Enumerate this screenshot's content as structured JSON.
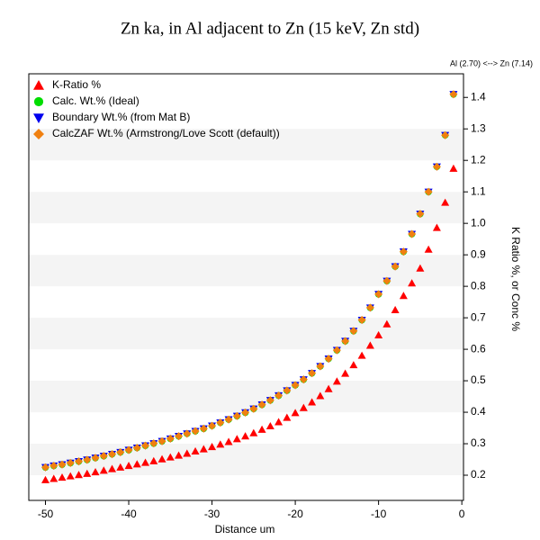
{
  "chart_data": {
    "type": "scatter",
    "title": "Zn ka, in Al adjacent to Zn (15 keV, Zn std)",
    "subtitle": "Al (2.70) <--> Zn (7.14)",
    "x_label": "Distance um",
    "y_label": "K Ratio %, or Conc %",
    "x": [
      -50,
      -49,
      -48,
      -47,
      -46,
      -45,
      -44,
      -43,
      -42,
      -41,
      -40,
      -39,
      -38,
      -37,
      -36,
      -35,
      -34,
      -33,
      -32,
      -31,
      -30,
      -29,
      -28,
      -27,
      -26,
      -25,
      -24,
      -23,
      -22,
      -21,
      -20,
      -19,
      -18,
      -17,
      -16,
      -15,
      -14,
      -13,
      -12,
      -11,
      -10,
      -9,
      -8,
      -7,
      -6,
      -5,
      -4,
      -3,
      -2,
      -1
    ],
    "series": [
      {
        "name": "K-Ratio %",
        "color": "#ff0000",
        "marker": "triangle-up",
        "values": [
          0.185,
          0.189,
          0.193,
          0.197,
          0.201,
          0.205,
          0.21,
          0.215,
          0.22,
          0.225,
          0.23,
          0.235,
          0.24,
          0.245,
          0.251,
          0.257,
          0.263,
          0.269,
          0.276,
          0.283,
          0.29,
          0.298,
          0.306,
          0.315,
          0.324,
          0.334,
          0.345,
          0.356,
          0.369,
          0.383,
          0.398,
          0.414,
          0.432,
          0.452,
          0.474,
          0.498,
          0.523,
          0.55,
          0.58,
          0.612,
          0.645,
          0.68,
          0.725,
          0.77,
          0.81,
          0.857,
          0.917,
          0.986,
          1.066,
          1.174
        ]
      },
      {
        "name": "Calc. Wt.% (Ideal)",
        "color": "#00dd00",
        "marker": "circle",
        "values": [
          0.225,
          0.23,
          0.234,
          0.239,
          0.244,
          0.249,
          0.255,
          0.261,
          0.267,
          0.273,
          0.28,
          0.287,
          0.294,
          0.301,
          0.308,
          0.316,
          0.324,
          0.332,
          0.34,
          0.348,
          0.357,
          0.367,
          0.377,
          0.388,
          0.399,
          0.411,
          0.424,
          0.438,
          0.453,
          0.469,
          0.486,
          0.504,
          0.524,
          0.546,
          0.57,
          0.597,
          0.626,
          0.658,
          0.693,
          0.732,
          0.775,
          0.817,
          0.863,
          0.91,
          0.966,
          1.03,
          1.1,
          1.18,
          1.28,
          1.41
        ]
      },
      {
        "name": "Boundary Wt.% (from Mat B)",
        "color": "#0000ee",
        "marker": "triangle-down",
        "values": [
          0.225,
          0.23,
          0.234,
          0.239,
          0.244,
          0.249,
          0.255,
          0.261,
          0.267,
          0.273,
          0.28,
          0.287,
          0.294,
          0.301,
          0.308,
          0.316,
          0.324,
          0.332,
          0.34,
          0.348,
          0.357,
          0.367,
          0.377,
          0.388,
          0.399,
          0.411,
          0.424,
          0.438,
          0.453,
          0.469,
          0.486,
          0.504,
          0.524,
          0.546,
          0.57,
          0.597,
          0.626,
          0.658,
          0.693,
          0.732,
          0.775,
          0.817,
          0.863,
          0.91,
          0.966,
          1.03,
          1.1,
          1.18,
          1.28,
          1.41
        ]
      },
      {
        "name": "CalcZAF Wt.% (Armstrong/Love Scott (default))",
        "color": "#f08010",
        "marker": "diamond",
        "values": [
          0.225,
          0.23,
          0.234,
          0.239,
          0.244,
          0.249,
          0.255,
          0.261,
          0.267,
          0.273,
          0.28,
          0.287,
          0.294,
          0.301,
          0.308,
          0.316,
          0.324,
          0.332,
          0.34,
          0.348,
          0.357,
          0.367,
          0.377,
          0.388,
          0.399,
          0.411,
          0.424,
          0.438,
          0.453,
          0.469,
          0.486,
          0.504,
          0.524,
          0.546,
          0.57,
          0.597,
          0.626,
          0.658,
          0.693,
          0.732,
          0.775,
          0.817,
          0.863,
          0.91,
          0.966,
          1.03,
          1.1,
          1.18,
          1.28,
          1.41
        ]
      }
    ],
    "xlim": [
      -52,
      0.2
    ],
    "xticks": [
      -50,
      -40,
      -30,
      -20,
      -10,
      0
    ],
    "ylim": [
      0.12,
      1.475
    ],
    "yticks": [
      0.2,
      0.3,
      0.4,
      0.5,
      0.6,
      0.7,
      0.8,
      0.9,
      {
        "value": 1.0,
        "label": "1.0"
      },
      1.1,
      1.2,
      1.3,
      1.4
    ],
    "grid": true,
    "legend": "top-left"
  }
}
